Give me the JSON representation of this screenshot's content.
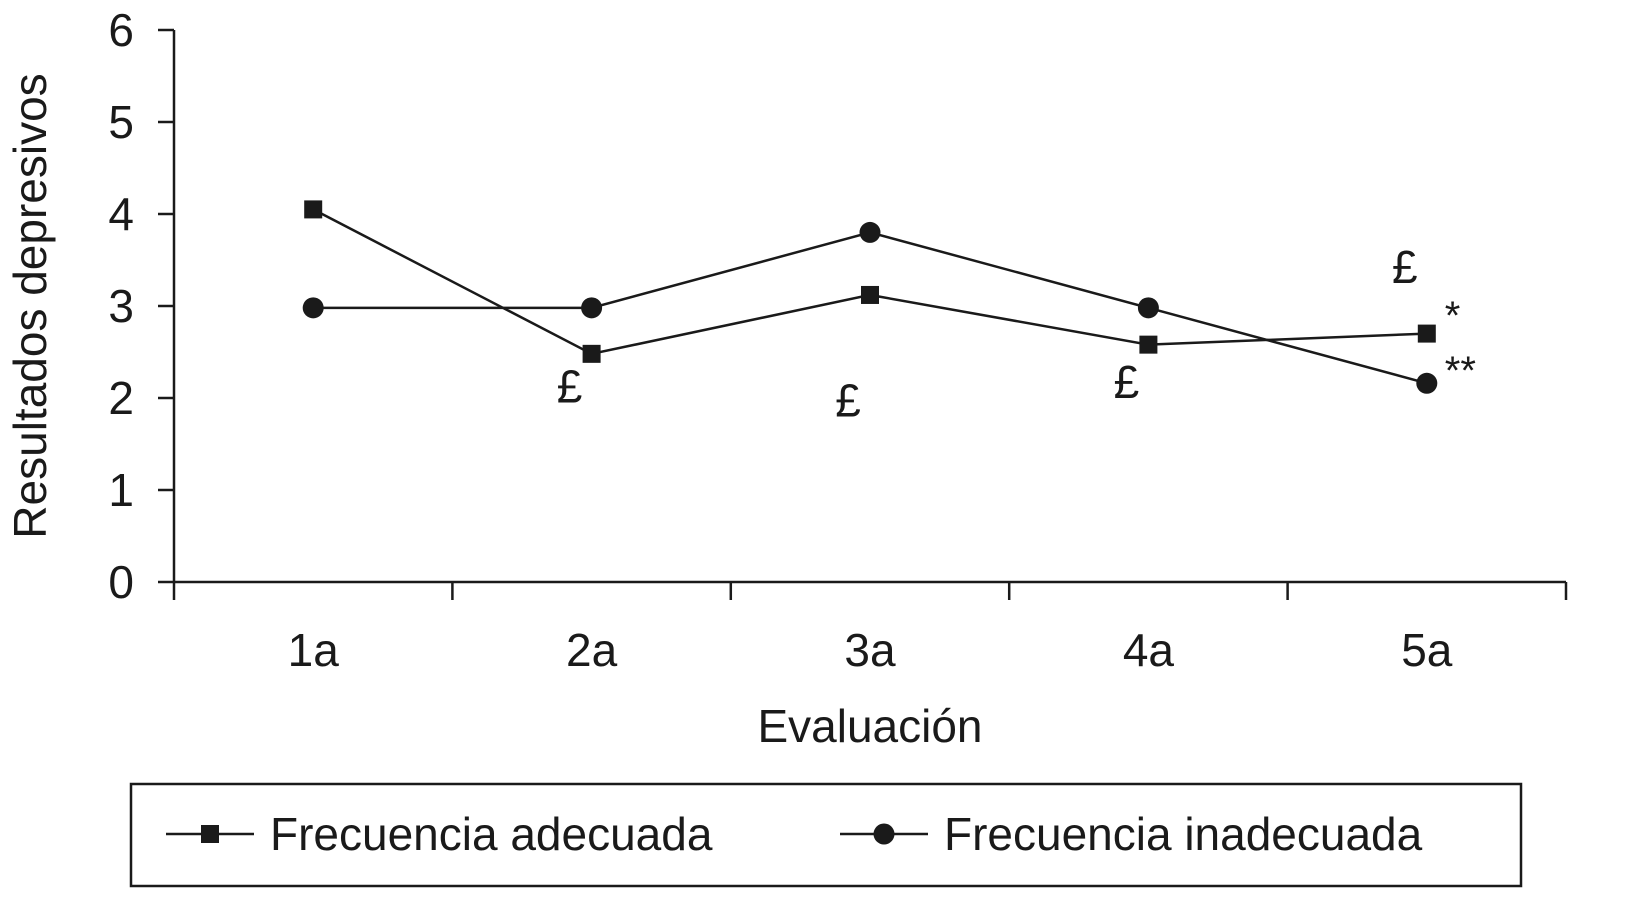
{
  "chart_data": {
    "type": "line",
    "xlabel": "Evaluación",
    "ylabel": "Resultados depresivos",
    "ylim": [
      0,
      6
    ],
    "yticks": [
      "0",
      "1",
      "2",
      "3",
      "4",
      "5",
      "6"
    ],
    "categories": [
      "1a",
      "2a",
      "3a",
      "4a",
      "5a"
    ],
    "grid": false,
    "legend_position": "bottom",
    "series": [
      {
        "name": "Frecuencia adecuada",
        "marker": "square",
        "values": [
          4.05,
          2.48,
          3.12,
          2.58,
          2.7
        ]
      },
      {
        "name": "Frecuencia inadecuada",
        "marker": "circle",
        "values": [
          2.98,
          2.98,
          3.8,
          2.98,
          2.16
        ]
      }
    ],
    "annotations": [
      {
        "text": "£",
        "category": "2a",
        "y": 1.95
      },
      {
        "text": "£",
        "category": "3a",
        "y": 1.8
      },
      {
        "text": "£",
        "category": "4a",
        "y": 2.0
      },
      {
        "text": "£",
        "category": "5a",
        "y": 3.25
      },
      {
        "text": "*",
        "category": "5a",
        "y": 2.75
      },
      {
        "text": "**",
        "category": "5a",
        "y": 2.15
      }
    ],
    "colors": {
      "line": "#1a1a1a",
      "background": "#ffffff"
    }
  }
}
